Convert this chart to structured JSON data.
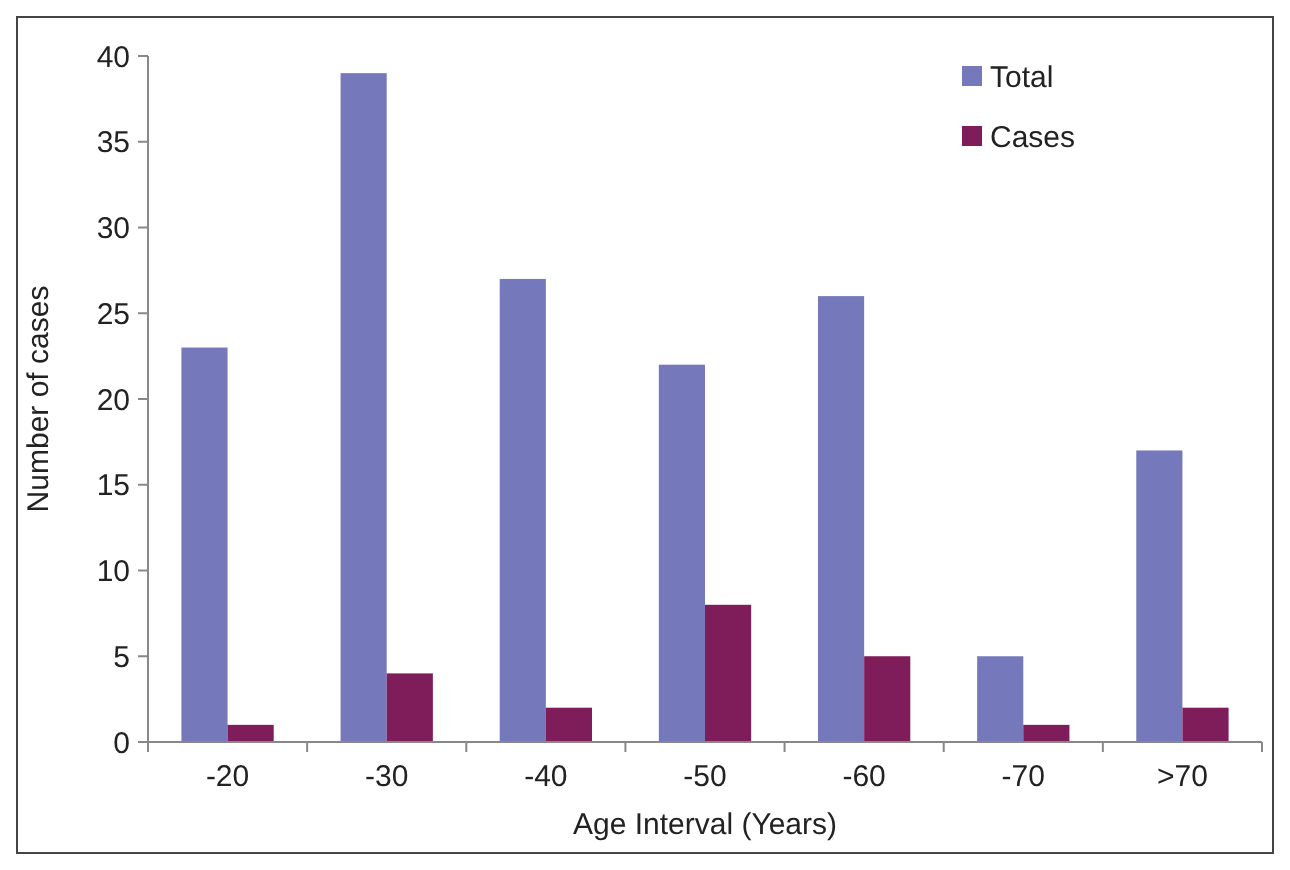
{
  "chart_data": {
    "type": "bar",
    "xlabel": "Age Interval (Years)",
    "ylabel": "Number of cases",
    "categories": [
      "-20",
      "-30",
      "-40",
      "-50",
      "-60",
      "-70",
      ">70"
    ],
    "series": [
      {
        "name": "Total",
        "color": "#7579bb",
        "values": [
          23,
          39,
          27,
          22,
          26,
          5,
          17
        ]
      },
      {
        "name": "Cases",
        "color": "#7f1d5a",
        "values": [
          1,
          4,
          2,
          8,
          5,
          1,
          2
        ]
      }
    ],
    "ylim": [
      0,
      40
    ],
    "yticks": [
      0,
      5,
      10,
      15,
      20,
      25,
      30,
      35,
      40
    ],
    "grid": false,
    "legend": "top right"
  }
}
